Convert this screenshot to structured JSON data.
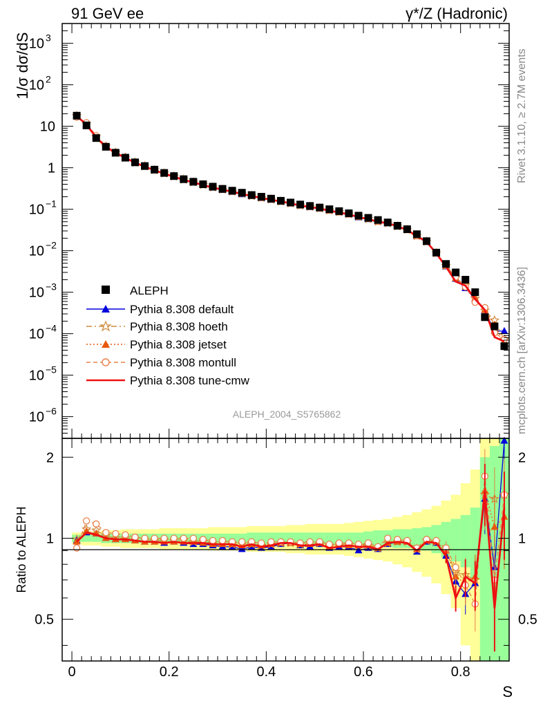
{
  "chart_data": {
    "type": "line",
    "header": {
      "left": "91 GeV ee",
      "right": "γ*/Z (Hadronic)"
    },
    "side_labels": {
      "top": "Rivet 3.1.10, ≥ 2.7M events",
      "bottom": "mcplots.cern.ch [arXiv:1306.3436]"
    },
    "analysis_id": "ALEPH_2004_S5765862",
    "xlabel": "S",
    "ylabel_top": "1/σ  dσ/dS",
    "ylabel_bottom": "Ratio to ALEPH",
    "xlim": [
      -0.02,
      0.9
    ],
    "ylim_top": [
      3e-07,
      3000
    ],
    "ylim_bottom": [
      0.35,
      2.35
    ],
    "x_ticks": [
      "0",
      "0.2",
      "0.4",
      "0.6",
      "0.8"
    ],
    "ratio_ticks": [
      "0.5",
      "1",
      "2"
    ],
    "y_ticks_top": [
      {
        "v": 1000,
        "m": "10",
        "e": "3"
      },
      {
        "v": 100,
        "m": "10",
        "e": "2"
      },
      {
        "v": 10,
        "m": "10",
        "e": ""
      },
      {
        "v": 1,
        "m": "1",
        "e": ""
      },
      {
        "v": 0.1,
        "m": "10",
        "e": "−1"
      },
      {
        "v": 0.01,
        "m": "10",
        "e": "−2"
      },
      {
        "v": 0.001,
        "m": "10",
        "e": "−3"
      },
      {
        "v": 0.0001,
        "m": "10",
        "e": "−4"
      },
      {
        "v": 1e-05,
        "m": "10",
        "e": "−5"
      },
      {
        "v": 1e-06,
        "m": "10",
        "e": "−6"
      }
    ],
    "x": [
      0.01,
      0.03,
      0.05,
      0.07,
      0.09,
      0.11,
      0.13,
      0.15,
      0.17,
      0.19,
      0.21,
      0.23,
      0.25,
      0.27,
      0.29,
      0.31,
      0.33,
      0.35,
      0.37,
      0.39,
      0.41,
      0.43,
      0.45,
      0.47,
      0.49,
      0.51,
      0.53,
      0.55,
      0.57,
      0.59,
      0.61,
      0.63,
      0.65,
      0.67,
      0.69,
      0.71,
      0.73,
      0.75,
      0.77,
      0.79,
      0.81,
      0.83,
      0.85,
      0.87,
      0.89
    ],
    "data": {
      "name": "ALEPH",
      "values": [
        18,
        10.5,
        5.2,
        3.2,
        2.3,
        1.75,
        1.35,
        1.1,
        0.9,
        0.75,
        0.63,
        0.53,
        0.46,
        0.4,
        0.35,
        0.31,
        0.28,
        0.25,
        0.22,
        0.2,
        0.18,
        0.16,
        0.145,
        0.13,
        0.12,
        0.11,
        0.1,
        0.09,
        0.08,
        0.07,
        0.062,
        0.055,
        0.048,
        0.04,
        0.033,
        0.025,
        0.017,
        0.009,
        0.0048,
        0.003,
        0.002,
        0.001,
        0.00025,
        0.00015,
        5e-05
      ]
    },
    "band_uncert": {
      "inner": [
        0.03,
        0.03,
        0.03,
        0.04,
        0.04,
        0.04,
        0.04,
        0.04,
        0.04,
        0.04,
        0.04,
        0.04,
        0.04,
        0.04,
        0.04,
        0.04,
        0.04,
        0.04,
        0.05,
        0.05,
        0.05,
        0.05,
        0.05,
        0.05,
        0.05,
        0.05,
        0.05,
        0.05,
        0.05,
        0.05,
        0.06,
        0.07,
        0.07,
        0.08,
        0.08,
        0.09,
        0.1,
        0.12,
        0.15,
        0.18,
        0.22,
        0.3,
        1.0,
        1.2,
        1.5
      ],
      "outer": [
        0.05,
        0.06,
        0.06,
        0.07,
        0.07,
        0.08,
        0.08,
        0.08,
        0.08,
        0.09,
        0.09,
        0.09,
        0.09,
        0.09,
        0.1,
        0.1,
        0.1,
        0.1,
        0.11,
        0.11,
        0.11,
        0.11,
        0.12,
        0.12,
        0.13,
        0.13,
        0.13,
        0.13,
        0.14,
        0.15,
        0.16,
        0.17,
        0.18,
        0.2,
        0.22,
        0.25,
        0.28,
        0.32,
        0.38,
        0.45,
        0.6,
        0.8,
        1.4,
        1.6,
        2.0
      ]
    },
    "series": [
      {
        "name": "Pythia 8.308 default",
        "color": "#0000dd",
        "dash": "",
        "marker": "tri",
        "ratio": [
          0.98,
          1.05,
          1.04,
          1.0,
          0.99,
          0.99,
          0.98,
          0.97,
          0.97,
          0.96,
          0.97,
          0.96,
          0.95,
          0.95,
          0.94,
          0.93,
          0.93,
          0.91,
          0.93,
          0.92,
          0.93,
          0.95,
          0.96,
          0.94,
          0.93,
          0.95,
          0.92,
          0.93,
          0.93,
          0.9,
          0.92,
          0.91,
          0.95,
          0.97,
          0.97,
          0.89,
          0.97,
          0.96,
          0.86,
          0.69,
          0.62,
          0.68,
          1.4,
          0.78,
          2.3
        ]
      },
      {
        "name": "Pythia 8.308 hoeth",
        "color": "#d08a3c",
        "dash": "8 4 2 4",
        "marker": "star",
        "ratio": [
          0.99,
          1.08,
          1.07,
          1.02,
          1.0,
          1.0,
          0.99,
          0.99,
          0.98,
          0.98,
          0.98,
          0.98,
          0.97,
          0.97,
          0.96,
          0.96,
          0.95,
          0.95,
          0.95,
          0.94,
          0.95,
          0.96,
          0.96,
          0.95,
          0.96,
          0.96,
          0.94,
          0.95,
          0.95,
          0.94,
          0.94,
          0.92,
          0.96,
          0.97,
          0.97,
          0.91,
          0.98,
          0.97,
          0.9,
          0.75,
          0.73,
          0.7,
          1.45,
          1.4,
          1.45
        ]
      },
      {
        "name": "Pythia 8.308 jetset",
        "color": "#e8590c",
        "dash": "2 3",
        "marker": "tri",
        "ratio": [
          0.97,
          1.06,
          1.04,
          1.0,
          0.99,
          0.99,
          0.98,
          0.97,
          0.97,
          0.97,
          0.97,
          0.97,
          0.97,
          0.96,
          0.95,
          0.95,
          0.95,
          0.94,
          0.95,
          0.94,
          0.95,
          0.96,
          0.96,
          0.95,
          0.95,
          0.96,
          0.93,
          0.95,
          0.94,
          0.94,
          0.95,
          0.92,
          0.96,
          0.97,
          0.97,
          0.91,
          0.98,
          0.97,
          0.9,
          0.72,
          0.68,
          0.72,
          1.5,
          1.1,
          1.2
        ]
      },
      {
        "name": "Pythia 8.308 montull",
        "color": "#e8804a",
        "dash": "6 4",
        "marker": "circ",
        "ratio": [
          0.92,
          1.16,
          1.13,
          1.05,
          1.04,
          1.03,
          1.01,
          1.0,
          1.0,
          1.0,
          1.0,
          1.0,
          1.0,
          0.99,
          0.98,
          0.98,
          0.97,
          0.97,
          0.97,
          0.96,
          0.97,
          0.97,
          0.97,
          0.96,
          0.97,
          0.97,
          0.95,
          0.96,
          0.96,
          0.95,
          0.96,
          0.93,
          1.0,
          0.99,
          0.98,
          0.92,
          0.99,
          0.98,
          0.92,
          0.78,
          0.67,
          0.57,
          1.7,
          0.7,
          1.45
        ]
      },
      {
        "name": "Pythia 8.308 tune-cmw",
        "color": "#ee1111",
        "dash": "",
        "marker": "none",
        "ratio": [
          0.97,
          1.05,
          1.03,
          1.0,
          0.99,
          0.99,
          0.98,
          0.97,
          0.97,
          0.96,
          0.97,
          0.96,
          0.96,
          0.96,
          0.95,
          0.95,
          0.95,
          0.93,
          0.95,
          0.93,
          0.94,
          0.96,
          0.96,
          0.94,
          0.94,
          0.95,
          0.92,
          0.93,
          0.94,
          0.93,
          0.93,
          0.91,
          0.96,
          0.97,
          0.96,
          0.9,
          0.97,
          0.96,
          0.86,
          0.6,
          0.72,
          0.68,
          1.5,
          0.55,
          1.3
        ]
      }
    ]
  }
}
